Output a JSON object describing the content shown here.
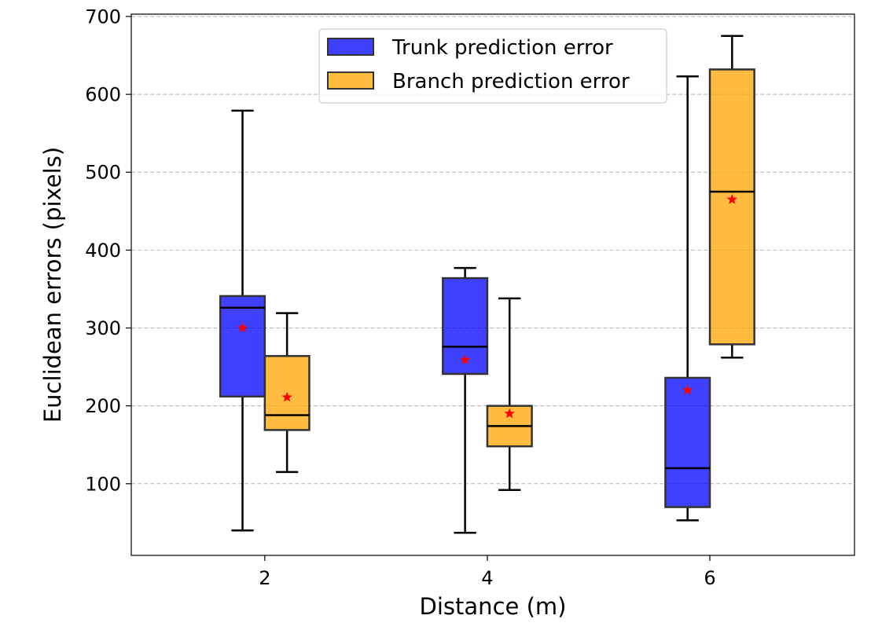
{
  "chart_data": {
    "type": "box",
    "title": "",
    "xlabel": "Distance (m)",
    "ylabel": "Euclidean errors (pixels)",
    "categories": [
      "2",
      "4",
      "6"
    ],
    "x_values": [
      2,
      4,
      6
    ],
    "xlim": [
      0.8,
      7.3
    ],
    "ylim": [
      8,
      703
    ],
    "yticks": [
      100,
      200,
      300,
      400,
      500,
      600,
      700
    ],
    "grid": "horizontal dashed",
    "legend_position": "upper center",
    "series": [
      {
        "name": "Trunk prediction error",
        "color": "#0000ff",
        "offset": -0.2,
        "boxes": [
          {
            "x": 2,
            "whisker_low": 40,
            "q1": 212,
            "median": 326,
            "q3": 341,
            "whisker_high": 579,
            "mean": 300
          },
          {
            "x": 4,
            "whisker_low": 37,
            "q1": 241,
            "median": 276,
            "q3": 364,
            "whisker_high": 377,
            "mean": 259
          },
          {
            "x": 6,
            "whisker_low": 53,
            "q1": 70,
            "median": 120,
            "q3": 236,
            "whisker_high": 623,
            "mean": 220
          }
        ]
      },
      {
        "name": "Branch prediction error",
        "color": "#ffa500",
        "offset": 0.2,
        "boxes": [
          {
            "x": 2,
            "whisker_low": 115,
            "q1": 169,
            "median": 188,
            "q3": 264,
            "whisker_high": 319,
            "mean": 211
          },
          {
            "x": 4,
            "whisker_low": 92,
            "q1": 148,
            "median": 174,
            "q3": 200,
            "whisker_high": 338,
            "mean": 190
          },
          {
            "x": 6,
            "whisker_low": 262,
            "q1": 279,
            "median": 475,
            "q3": 632,
            "whisker_high": 675,
            "mean": 465
          }
        ]
      }
    ]
  }
}
